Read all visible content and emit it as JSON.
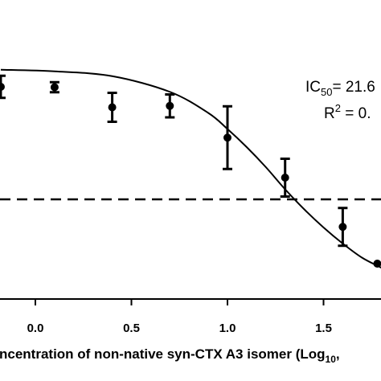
{
  "chart_data": {
    "type": "scatter",
    "xlabel_visible": "ncentration of non-native syn-CTX A3 isomer (Log",
    "xlabel_subscript": "10",
    "xlabel_tail": ",",
    "x_ticks": [
      "0.0",
      "0.5",
      "1.0",
      "1.5"
    ],
    "xlim": [
      -0.18,
      1.9
    ],
    "ylim": [
      0,
      1
    ],
    "annotations": {
      "ic50_prefix": "IC",
      "ic50_sub": "50",
      "ic50_value": "= 21.6",
      "r2_prefix": "R",
      "r2_sup": "2",
      "r2_value": " = 0."
    },
    "points": [
      {
        "x": -0.18,
        "y": 0.88,
        "err": 0.055
      },
      {
        "x": 0.1,
        "y": 0.878,
        "err": 0.025
      },
      {
        "x": 0.4,
        "y": 0.778,
        "err": 0.072
      },
      {
        "x": 0.7,
        "y": 0.785,
        "err": 0.057
      },
      {
        "x": 1.0,
        "y": 0.627,
        "err": 0.156
      },
      {
        "x": 1.3,
        "y": 0.428,
        "err": 0.094
      },
      {
        "x": 1.6,
        "y": 0.183,
        "err": 0.094
      },
      {
        "x": 1.78,
        "y": 0.0,
        "err": 0
      }
    ],
    "fit_curve": [
      {
        "x": -0.18,
        "y": 0.965
      },
      {
        "x": 0.1,
        "y": 0.957
      },
      {
        "x": 0.4,
        "y": 0.933
      },
      {
        "x": 0.7,
        "y": 0.855
      },
      {
        "x": 0.9,
        "y": 0.75
      },
      {
        "x": 1.0,
        "y": 0.67
      },
      {
        "x": 1.1,
        "y": 0.58
      },
      {
        "x": 1.2,
        "y": 0.48
      },
      {
        "x": 1.3,
        "y": 0.37
      },
      {
        "x": 1.4,
        "y": 0.27
      },
      {
        "x": 1.5,
        "y": 0.18
      },
      {
        "x": 1.6,
        "y": 0.1
      },
      {
        "x": 1.7,
        "y": 0.03
      },
      {
        "x": 1.8,
        "y": -0.02
      },
      {
        "x": 1.9,
        "y": -0.07
      }
    ],
    "reference_line_y": 0.32,
    "grid": false,
    "legend": "none"
  }
}
